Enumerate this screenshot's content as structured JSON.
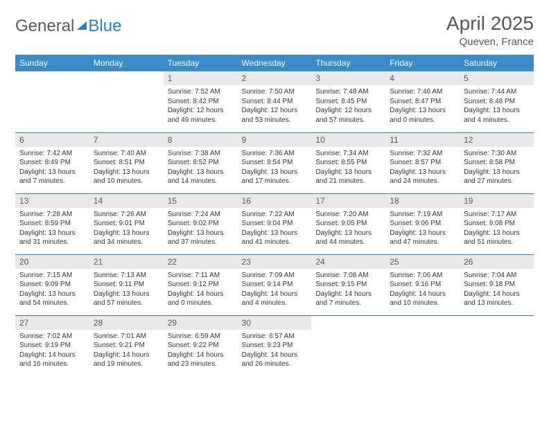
{
  "logo": {
    "part1": "General",
    "part2": "Blue"
  },
  "header": {
    "month": "April 2025",
    "location": "Queven, France"
  },
  "colors": {
    "header_bg": "#3b8bc9",
    "divider": "#2a7fbf",
    "daynum_bg": "#e9e9e9",
    "text": "#333333"
  },
  "columns": [
    "Sunday",
    "Monday",
    "Tuesday",
    "Wednesday",
    "Thursday",
    "Friday",
    "Saturday"
  ],
  "weeks": [
    [
      null,
      null,
      {
        "n": "1",
        "sr": "7:52 AM",
        "ss": "8:42 PM",
        "dl": "12 hours and 49 minutes."
      },
      {
        "n": "2",
        "sr": "7:50 AM",
        "ss": "8:44 PM",
        "dl": "12 hours and 53 minutes."
      },
      {
        "n": "3",
        "sr": "7:48 AM",
        "ss": "8:45 PM",
        "dl": "12 hours and 57 minutes."
      },
      {
        "n": "4",
        "sr": "7:46 AM",
        "ss": "8:47 PM",
        "dl": "13 hours and 0 minutes."
      },
      {
        "n": "5",
        "sr": "7:44 AM",
        "ss": "8:48 PM",
        "dl": "13 hours and 4 minutes."
      }
    ],
    [
      {
        "n": "6",
        "sr": "7:42 AM",
        "ss": "8:49 PM",
        "dl": "13 hours and 7 minutes."
      },
      {
        "n": "7",
        "sr": "7:40 AM",
        "ss": "8:51 PM",
        "dl": "13 hours and 10 minutes."
      },
      {
        "n": "8",
        "sr": "7:38 AM",
        "ss": "8:52 PM",
        "dl": "13 hours and 14 minutes."
      },
      {
        "n": "9",
        "sr": "7:36 AM",
        "ss": "8:54 PM",
        "dl": "13 hours and 17 minutes."
      },
      {
        "n": "10",
        "sr": "7:34 AM",
        "ss": "8:55 PM",
        "dl": "13 hours and 21 minutes."
      },
      {
        "n": "11",
        "sr": "7:32 AM",
        "ss": "8:57 PM",
        "dl": "13 hours and 24 minutes."
      },
      {
        "n": "12",
        "sr": "7:30 AM",
        "ss": "8:58 PM",
        "dl": "13 hours and 27 minutes."
      }
    ],
    [
      {
        "n": "13",
        "sr": "7:28 AM",
        "ss": "8:59 PM",
        "dl": "13 hours and 31 minutes."
      },
      {
        "n": "14",
        "sr": "7:26 AM",
        "ss": "9:01 PM",
        "dl": "13 hours and 34 minutes."
      },
      {
        "n": "15",
        "sr": "7:24 AM",
        "ss": "9:02 PM",
        "dl": "13 hours and 37 minutes."
      },
      {
        "n": "16",
        "sr": "7:22 AM",
        "ss": "9:04 PM",
        "dl": "13 hours and 41 minutes."
      },
      {
        "n": "17",
        "sr": "7:20 AM",
        "ss": "9:05 PM",
        "dl": "13 hours and 44 minutes."
      },
      {
        "n": "18",
        "sr": "7:19 AM",
        "ss": "9:06 PM",
        "dl": "13 hours and 47 minutes."
      },
      {
        "n": "19",
        "sr": "7:17 AM",
        "ss": "9:08 PM",
        "dl": "13 hours and 51 minutes."
      }
    ],
    [
      {
        "n": "20",
        "sr": "7:15 AM",
        "ss": "9:09 PM",
        "dl": "13 hours and 54 minutes."
      },
      {
        "n": "21",
        "sr": "7:13 AM",
        "ss": "9:11 PM",
        "dl": "13 hours and 57 minutes."
      },
      {
        "n": "22",
        "sr": "7:11 AM",
        "ss": "9:12 PM",
        "dl": "14 hours and 0 minutes."
      },
      {
        "n": "23",
        "sr": "7:09 AM",
        "ss": "9:14 PM",
        "dl": "14 hours and 4 minutes."
      },
      {
        "n": "24",
        "sr": "7:08 AM",
        "ss": "9:15 PM",
        "dl": "14 hours and 7 minutes."
      },
      {
        "n": "25",
        "sr": "7:06 AM",
        "ss": "9:16 PM",
        "dl": "14 hours and 10 minutes."
      },
      {
        "n": "26",
        "sr": "7:04 AM",
        "ss": "9:18 PM",
        "dl": "14 hours and 13 minutes."
      }
    ],
    [
      {
        "n": "27",
        "sr": "7:02 AM",
        "ss": "9:19 PM",
        "dl": "14 hours and 16 minutes."
      },
      {
        "n": "28",
        "sr": "7:01 AM",
        "ss": "9:21 PM",
        "dl": "14 hours and 19 minutes."
      },
      {
        "n": "29",
        "sr": "6:59 AM",
        "ss": "9:22 PM",
        "dl": "14 hours and 23 minutes."
      },
      {
        "n": "30",
        "sr": "6:57 AM",
        "ss": "9:23 PM",
        "dl": "14 hours and 26 minutes."
      },
      null,
      null,
      null
    ]
  ],
  "labels": {
    "sunrise": "Sunrise: ",
    "sunset": "Sunset: ",
    "daylight": "Daylight: "
  }
}
